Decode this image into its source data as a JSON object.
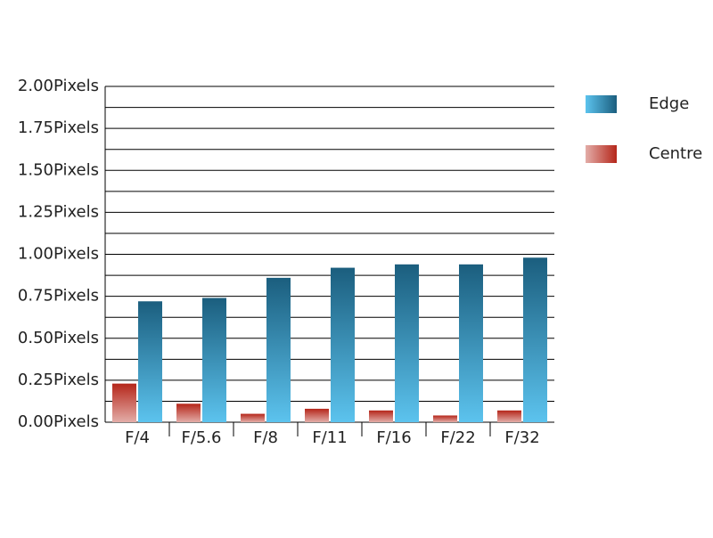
{
  "chart_data": {
    "type": "bar",
    "categories": [
      "F/4",
      "F/5.6",
      "F/8",
      "F/11",
      "F/16",
      "F/22",
      "F/32"
    ],
    "series": [
      {
        "name": "Centre",
        "color": "#b5261a",
        "values": [
          0.23,
          0.11,
          0.05,
          0.08,
          0.07,
          0.04,
          0.07
        ]
      },
      {
        "name": "Edge",
        "color": "#1b5e7e",
        "values": [
          0.72,
          0.74,
          0.86,
          0.92,
          0.94,
          0.94,
          0.98
        ]
      }
    ],
    "ylim": [
      0,
      2
    ],
    "yticks": [
      {
        "value": 0,
        "label": "0.00Pixels"
      },
      {
        "value": 0.25,
        "label": "0.25Pixels"
      },
      {
        "value": 0.5,
        "label": "0.50Pixels"
      },
      {
        "value": 0.75,
        "label": "0.75Pixels"
      },
      {
        "value": 1,
        "label": "1.00Pixels"
      },
      {
        "value": 1.25,
        "label": "1.25Pixels"
      },
      {
        "value": 1.5,
        "label": "1.50Pixels"
      },
      {
        "value": 1.75,
        "label": "1.75Pixels"
      },
      {
        "value": 2,
        "label": "2.00Pixels"
      }
    ],
    "minor_yticks": [
      0.125,
      0.375,
      0.625,
      0.875,
      1.125,
      1.375,
      1.625,
      1.875
    ],
    "grid": true,
    "legend": "right"
  }
}
